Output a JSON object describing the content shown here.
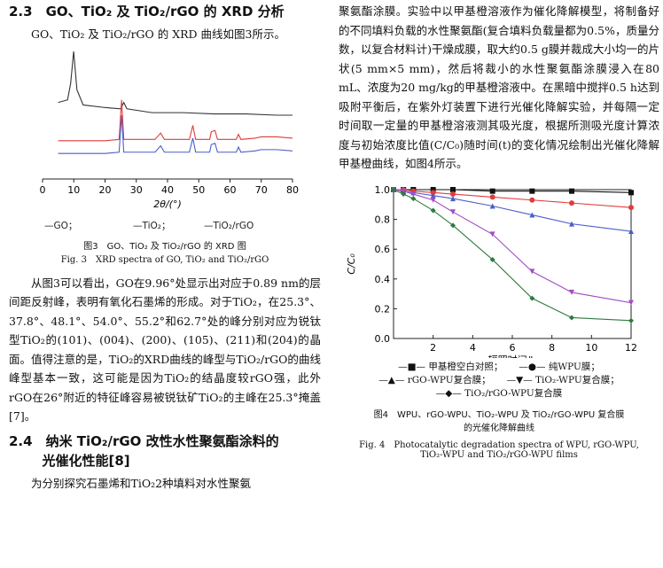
{
  "left": {
    "section_23_title": "2.3　GO、TiO₂ 及 TiO₂/rGO 的 XRD 分析",
    "section_23_intro": "GO、TiO₂ 及 TiO₂/rGO 的 XRD 曲线如图3所示。",
    "fig3_xlabel": "2θ/(°)",
    "fig3_legend": [
      "—GO；",
      "—TiO₂；",
      "—TiO₂/rGO"
    ],
    "fig3_caption_cn": "图3　GO、TiO₂ 及 TiO₂/rGO 的 XRD 图",
    "fig3_caption_en": "Fig. 3　XRD spectra of GO, TiO₂ and TiO₂/rGO",
    "para1": "从图3可以看出，GO在9.96°处显示出对应于0.89 nm的层间距反射峰，表明有氧化石墨烯的形成。对于TiO₂，在25.3°、37.8°、48.1°、54.0°、55.2°和62.7°处的峰分别对应为锐钛型TiO₂的(101)、(004)、(200)、(105)、(211)和(204)的晶面。值得注意的是，TiO₂的XRD曲线的峰型与TiO₂/rGO的曲线峰型基本一致，这可能是因为TiO₂的结晶度较rGO强，此外rGO在26°附近的特征峰容易被锐钛矿TiO₂的主峰在25.3°掩盖[7]。",
    "section_24_title_l1": "2.4　纳米 TiO₂/rGO 改性水性聚氨酯涂料的",
    "section_24_title_l2": "光催化性能[8]",
    "para2": "为分别探究石墨烯和TiO₂2种填料对水性聚氨"
  },
  "right": {
    "para3": "聚氨酯涂膜。实验中以甲基橙溶液作为催化降解模型，将制备好的不同填料负载的水性聚氨酯(复合填料负载量都为0.5%，质量分数，以复合材料计)干燥成膜，取大约0.5 g膜并裁成大小均一的片状(5 mm×5 mm)，然后将裁小的水性聚氨酯涂膜浸入在80 mL、浓度为20 mg/kg的甲基橙溶液中。在黑暗中搅拌0.5 h达到吸附平衡后，在紫外灯装置下进行光催化降解实验，并每隔一定时间取一定量的甲基橙溶液测其吸光度，根据所测吸光度计算浓度与初始浓度比值(C/C₀)随时间(t)的变化情况绘制出光催化降解甲基橙曲线，如图4所示。",
    "fig4_caption_cn_l1": "图4　WPU、rGO-WPU、TiO₂-WPU 及 TiO₂/rGO-WPU 复合膜",
    "fig4_caption_cn_l2": "的光催化降解曲线",
    "fig4_caption_en_l1": "Fig. 4　Photocatalytic degradation spectra of WPU, rGO-WPU,",
    "fig4_caption_en_l2": "TiO₂-WPU and TiO₂/rGO-WPU films"
  },
  "chart_data": [
    {
      "type": "line",
      "xlabel": "2θ/(°)",
      "ylabel": "",
      "xlim": [
        0,
        80
      ],
      "xticks": [
        0,
        10,
        20,
        30,
        40,
        50,
        60,
        70,
        80
      ],
      "series": [
        {
          "name": "GO",
          "color": "#333333",
          "x": [
            5,
            8,
            9,
            9.96,
            11,
            13,
            20,
            25,
            26,
            27,
            35,
            45,
            55,
            65,
            75,
            80
          ],
          "y": [
            0.6,
            0.62,
            0.75,
            1.0,
            0.7,
            0.58,
            0.56,
            0.55,
            0.6,
            0.55,
            0.52,
            0.52,
            0.51,
            0.51,
            0.5,
            0.5
          ]
        },
        {
          "name": "TiO₂",
          "color": "#e03c3c",
          "x": [
            5,
            20,
            24.5,
            25.3,
            26,
            36,
            37.8,
            39,
            47,
            48.1,
            49,
            53.5,
            54.0,
            55.2,
            56,
            62,
            62.7,
            63.5,
            68,
            70,
            75,
            80
          ],
          "y": [
            0.3,
            0.3,
            0.31,
            0.62,
            0.31,
            0.31,
            0.36,
            0.31,
            0.31,
            0.42,
            0.31,
            0.31,
            0.37,
            0.38,
            0.31,
            0.31,
            0.35,
            0.31,
            0.32,
            0.33,
            0.33,
            0.32
          ]
        },
        {
          "name": "TiO₂/rGO",
          "color": "#4a5ec8",
          "x": [
            5,
            20,
            24.5,
            25.3,
            26,
            36,
            37.8,
            39,
            47,
            48.1,
            49,
            53.5,
            54.0,
            55.2,
            56,
            62,
            62.7,
            63.5,
            68,
            70,
            75,
            80
          ],
          "y": [
            0.2,
            0.2,
            0.21,
            0.5,
            0.21,
            0.21,
            0.26,
            0.21,
            0.21,
            0.32,
            0.21,
            0.21,
            0.27,
            0.28,
            0.21,
            0.21,
            0.25,
            0.21,
            0.22,
            0.23,
            0.23,
            0.22
          ]
        }
      ]
    },
    {
      "type": "line",
      "xlabel": "辐照时间/h",
      "ylabel": "C/C₀",
      "xlim": [
        0,
        12
      ],
      "ylim": [
        0,
        1.0
      ],
      "xticks": [
        2,
        4,
        6,
        8,
        10,
        12
      ],
      "yticks": [
        0,
        0.2,
        0.4,
        0.6,
        0.8,
        1.0
      ],
      "series": [
        {
          "name": "甲基橙空白对照",
          "color": "#111111",
          "marker": "square",
          "x": [
            0,
            0.5,
            1,
            2,
            3,
            5,
            7,
            9,
            12
          ],
          "y": [
            1.0,
            1.0,
            1.0,
            1.0,
            1.0,
            0.99,
            0.99,
            0.99,
            0.98
          ]
        },
        {
          "name": "纯WPU膜",
          "color": "#e03c3c",
          "marker": "circle",
          "x": [
            0,
            0.5,
            1,
            2,
            3,
            5,
            7,
            9,
            12
          ],
          "y": [
            1.0,
            1.0,
            0.99,
            0.98,
            0.97,
            0.95,
            0.93,
            0.91,
            0.88
          ]
        },
        {
          "name": "rGO-WPU复合膜",
          "color": "#4a5ec8",
          "marker": "triangle",
          "x": [
            0,
            0.5,
            1,
            2,
            3,
            5,
            7,
            9,
            12
          ],
          "y": [
            1.0,
            0.99,
            0.98,
            0.96,
            0.94,
            0.89,
            0.83,
            0.77,
            0.72
          ]
        },
        {
          "name": "TiO₂-WPU复合膜",
          "color": "#a24cc4",
          "marker": "triangle-down",
          "x": [
            0,
            0.5,
            1,
            2,
            3,
            5,
            7,
            9,
            12
          ],
          "y": [
            1.0,
            0.99,
            0.97,
            0.93,
            0.85,
            0.7,
            0.45,
            0.31,
            0.24
          ]
        },
        {
          "name": "TiO₂/rGO-WPU复合膜",
          "color": "#2f7a3f",
          "marker": "diamond",
          "x": [
            0,
            0.5,
            1,
            2,
            3,
            5,
            7,
            9,
            12
          ],
          "y": [
            1.0,
            0.97,
            0.94,
            0.86,
            0.76,
            0.53,
            0.27,
            0.14,
            0.12
          ]
        }
      ],
      "legend_lines": [
        [
          "—■— 甲基橙空白对照；",
          "—●— 纯WPU膜；"
        ],
        [
          "—▲— rGO-WPU复合膜；",
          "—▼— TiO₂-WPU复合膜；"
        ],
        [
          "—◆— TiO₂/rGO-WPU复合膜"
        ]
      ]
    }
  ]
}
